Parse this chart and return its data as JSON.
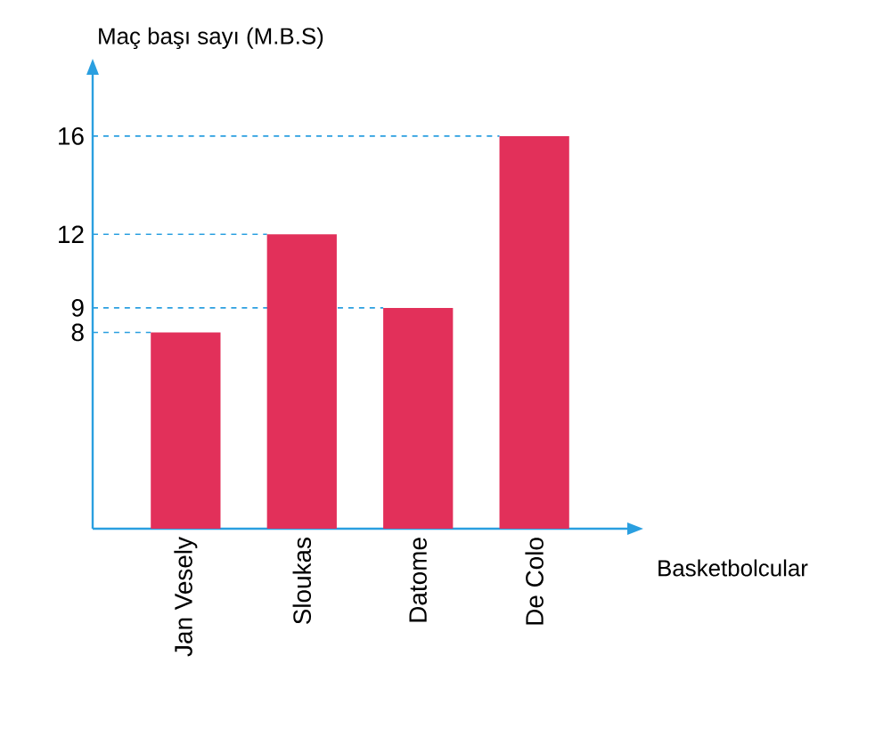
{
  "chart_data": {
    "type": "bar",
    "ylabel": "Maç başı sayı (M.B.S)",
    "xlabel": "Basketbolcular",
    "categories": [
      "Jan Vesely",
      "Sloukas",
      "Datome",
      "De Colo"
    ],
    "values": [
      8,
      12,
      9,
      16
    ],
    "color": "#e2305a",
    "ylim": [
      0,
      18.5
    ],
    "yticks": [
      8,
      9,
      12,
      16
    ],
    "ref_lines": [
      {
        "axis": "y",
        "value": 8,
        "color": "#2a9fe0",
        "line_style": "dashed"
      },
      {
        "axis": "y",
        "value": 9,
        "color": "#2a9fe0",
        "line_style": "dashed"
      },
      {
        "axis": "y",
        "value": 12,
        "color": "#2a9fe0",
        "line_style": "dashed"
      },
      {
        "axis": "y",
        "value": 16,
        "color": "#2a9fe0",
        "line_style": "dashed"
      }
    ]
  }
}
